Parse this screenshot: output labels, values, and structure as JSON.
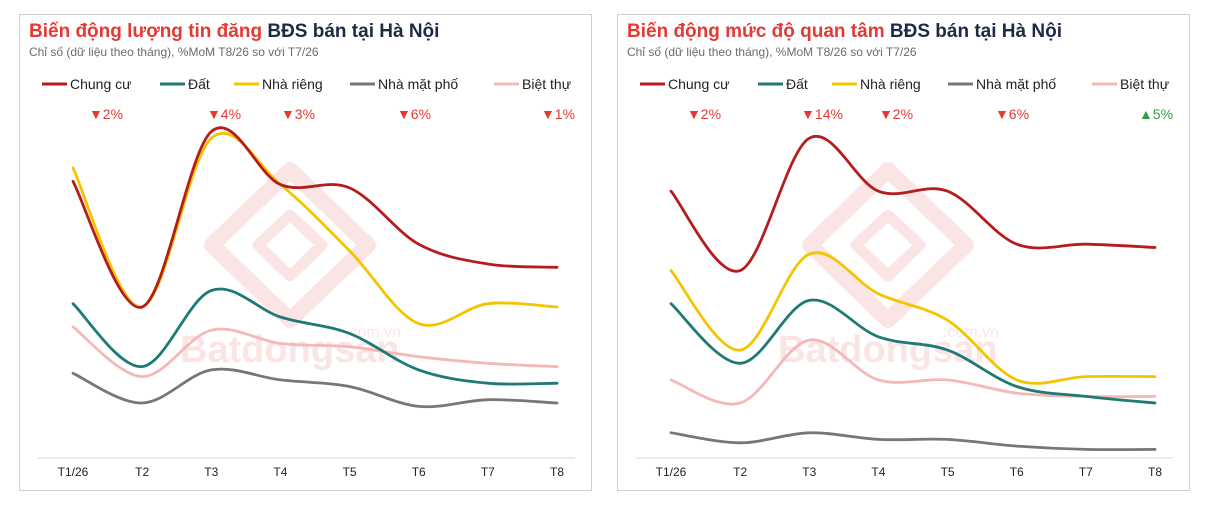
{
  "colors": {
    "chung_cu": "#b71c1c",
    "dat": "#1f7a75",
    "nha_rieng": "#f5c400",
    "nha_mat_pho": "#777777",
    "biet_thu": "#f4b8b6",
    "down": "#e53935",
    "up": "#2e9e4a",
    "title_highlight": "#e53935",
    "title_rest": "#1f2a44"
  },
  "watermark": {
    "brand": "Batdongsan",
    "domain": ".com.vn"
  },
  "chart_data": [
    {
      "type": "line",
      "title_highlight": "Biến động lượng tin đăng",
      "title_rest": "BĐS bán tại Hà Nội",
      "subtitle": "Chỉ số (dữ liệu theo tháng), %MoM T8/26 so với T7/26",
      "categories": [
        "T1/26",
        "T2",
        "T3",
        "T4",
        "T5",
        "T6",
        "T7",
        "T8"
      ],
      "ylim": [
        0,
        100
      ],
      "grid": false,
      "legend_position": "top",
      "series": [
        {
          "name": "Chung cư",
          "color_key": "chung_cu",
          "change": "2%",
          "direction": "down",
          "values": [
            83,
            45,
            98,
            82,
            81,
            64,
            58,
            57
          ]
        },
        {
          "name": "Đất",
          "color_key": "dat",
          "change": "4%",
          "direction": "down",
          "values": [
            46,
            27,
            50,
            42,
            37,
            26,
            22,
            22
          ]
        },
        {
          "name": "Nhà riêng",
          "color_key": "nha_rieng",
          "change": "3%",
          "direction": "down",
          "values": [
            87,
            45,
            96,
            82,
            62,
            40,
            46,
            45
          ]
        },
        {
          "name": "Nhà mặt phố",
          "color_key": "nha_mat_pho",
          "change": "6%",
          "direction": "down",
          "values": [
            25,
            16,
            26,
            23,
            21,
            15,
            17,
            16
          ]
        },
        {
          "name": "Biệt thự",
          "color_key": "biet_thu",
          "change": "1%",
          "direction": "down",
          "values": [
            39,
            24,
            38,
            34,
            33,
            30,
            28,
            27
          ]
        }
      ]
    },
    {
      "type": "line",
      "title_highlight": "Biến động mức độ quan tâm",
      "title_rest": "BĐS bán tại Hà Nội",
      "subtitle": "Chỉ số (dữ liệu theo tháng), %MoM T8/26 so với T7/26",
      "categories": [
        "T1/26",
        "T2",
        "T3",
        "T4",
        "T5",
        "T6",
        "T7",
        "T8"
      ],
      "ylim": [
        0,
        100
      ],
      "grid": false,
      "legend_position": "top",
      "series": [
        {
          "name": "Chung cư",
          "color_key": "chung_cu",
          "change": "2%",
          "direction": "down",
          "values": [
            80,
            56,
            96,
            80,
            80,
            64,
            64,
            63
          ]
        },
        {
          "name": "Đất",
          "color_key": "dat",
          "change": "14%",
          "direction": "down",
          "values": [
            46,
            28,
            47,
            36,
            32,
            21,
            18,
            16
          ]
        },
        {
          "name": "Nhà riêng",
          "color_key": "nha_rieng",
          "change": "2%",
          "direction": "down",
          "values": [
            56,
            32,
            61,
            49,
            41,
            23,
            24,
            24
          ]
        },
        {
          "name": "Nhà mặt phố",
          "color_key": "nha_mat_pho",
          "change": "6%",
          "direction": "down",
          "values": [
            7,
            4,
            7,
            5,
            5,
            3,
            2,
            2
          ]
        },
        {
          "name": "Biệt thự",
          "color_key": "biet_thu",
          "change": "5%",
          "direction": "up",
          "values": [
            23,
            16,
            35,
            23,
            23,
            19,
            18,
            18
          ]
        }
      ]
    }
  ]
}
